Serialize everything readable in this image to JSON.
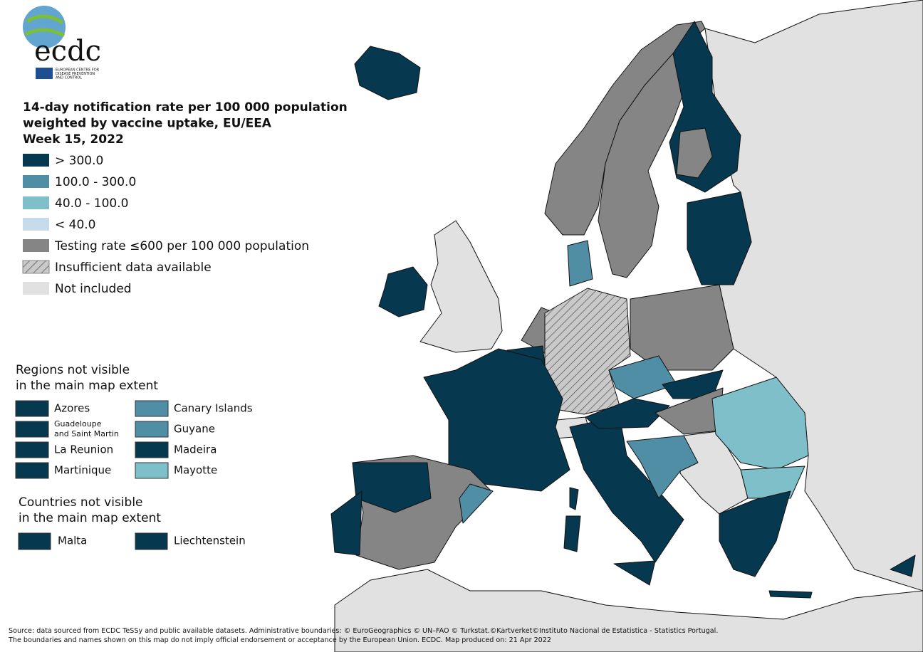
{
  "logo": {
    "text": "ecdc",
    "subtitle_lines": [
      "EUROPEAN CENTRE FOR",
      "DISEASE PREVENTION",
      "AND CONTROL"
    ]
  },
  "title_lines": [
    "14-day notification rate per 100 000 population",
    "weighted by vaccine uptake, EU/EEA",
    "Week 15, 2022"
  ],
  "legend": {
    "items": [
      {
        "label": "> 300.0",
        "color": "#06384f"
      },
      {
        "label": "100.0 - 300.0",
        "color": "#4f8ea5"
      },
      {
        "label": "40.0 - 100.0",
        "color": "#7fbfca"
      },
      {
        "label": "< 40.0",
        "color": "#c7dceb"
      },
      {
        "label": "Testing rate ≤600 per 100 000 population",
        "color": "#858585"
      },
      {
        "label": "Insufficient data available",
        "color": "#c9c9c9",
        "hatched": true
      },
      {
        "label": "Not included",
        "color": "#e1e1e1"
      }
    ]
  },
  "regions": {
    "title_lines": [
      "Regions not visible",
      "in the main map extent"
    ],
    "items": [
      {
        "lines": [
          "Azores"
        ],
        "color": "#06384f"
      },
      {
        "lines": [
          "Guadeloupe",
          "and Saint Martin"
        ],
        "color": "#06384f"
      },
      {
        "lines": [
          "La Reunion"
        ],
        "color": "#06384f"
      },
      {
        "lines": [
          "Martinique"
        ],
        "color": "#06384f"
      },
      {
        "lines": [
          "Canary Islands"
        ],
        "color": "#4f8ea5"
      },
      {
        "lines": [
          "Guyane"
        ],
        "color": "#4f8ea5"
      },
      {
        "lines": [
          "Madeira"
        ],
        "color": "#06384f"
      },
      {
        "lines": [
          "Mayotte"
        ],
        "color": "#7fbfca"
      }
    ]
  },
  "countries": {
    "title_lines": [
      "Countries not visible",
      "in the main map extent"
    ],
    "items": [
      {
        "label": "Malta",
        "color": "#06384f"
      },
      {
        "label": "Liechtenstein",
        "color": "#06384f"
      }
    ]
  },
  "source_lines": [
    "Source: data sourced from ECDC TeSSy and public available datasets. Administrative boundaries: © EuroGeographics © UN–FAO © Turkstat.©Kartverket©Instituto Nacional de Estatistica - Statistics Portugal.",
    "The boundaries and names shown on this map do not imply official endorsement or acceptance by the European Union. ECDC. Map produced on: 21 Apr 2022"
  ]
}
